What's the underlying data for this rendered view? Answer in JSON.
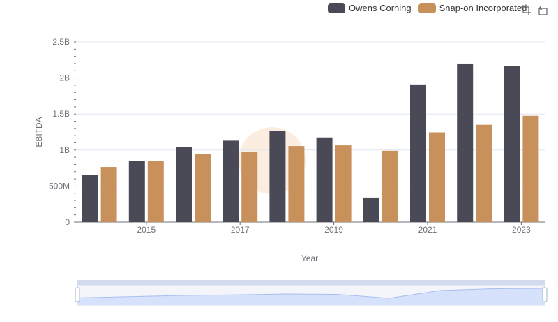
{
  "legend": {
    "items": [
      {
        "name": "Owens Corning",
        "color": "#4a4a56"
      },
      {
        "name": "Snap-on Incorporated",
        "color": "#c8905a"
      }
    ]
  },
  "toolbox": {
    "icons": [
      "zoom-icon",
      "restore-icon"
    ]
  },
  "chart_data": {
    "type": "bar",
    "categories": [
      "2014",
      "2015",
      "2016",
      "2017",
      "2018",
      "2019",
      "2020",
      "2021",
      "2022",
      "2023"
    ],
    "x_tick_labels": [
      "2015",
      "2017",
      "2019",
      "2021",
      "2023"
    ],
    "series": [
      {
        "name": "Owens Corning",
        "color": "#4a4a56",
        "values": [
          650000000,
          850000000,
          1040000000,
          1130000000,
          1265000000,
          1175000000,
          340000000,
          1910000000,
          2200000000,
          2165000000
        ]
      },
      {
        "name": "Snap-on Incorporated",
        "color": "#c8905a",
        "values": [
          765000000,
          845000000,
          940000000,
          970000000,
          1055000000,
          1065000000,
          990000000,
          1245000000,
          1350000000,
          1475000000
        ]
      }
    ],
    "xlabel": "Year",
    "ylabel": "EBITDA",
    "ylim": [
      0,
      2500000000
    ],
    "y_ticks": [
      0,
      500000000,
      1000000000,
      1500000000,
      2000000000,
      2500000000
    ],
    "y_tick_labels": [
      "0",
      "500M",
      "1B",
      "1.5B",
      "2B",
      "2.5B"
    ],
    "grid": true,
    "legend_position": "top-right",
    "data_zoom": true
  }
}
